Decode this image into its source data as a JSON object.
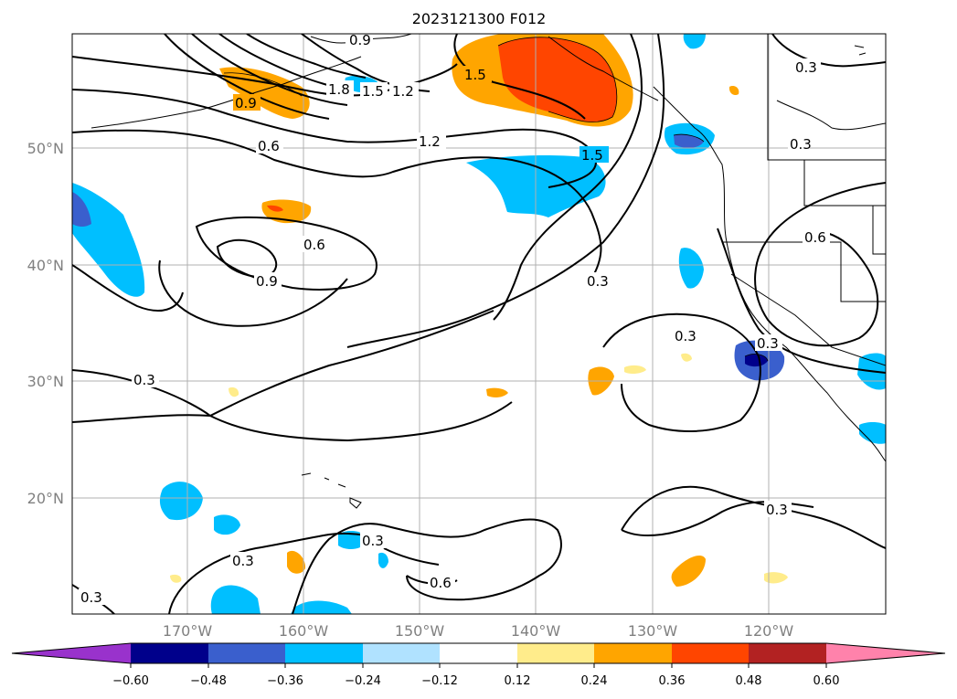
{
  "title": "2023121300 F012",
  "lat_labels": [
    "50°N",
    "40°N",
    "30°N",
    "20°N"
  ],
  "lon_labels": [
    "170°W",
    "160°W",
    "150°W",
    "140°W",
    "130°W",
    "120°W"
  ],
  "colorbar": {
    "ticks": [
      "−0.60",
      "−0.48",
      "−0.36",
      "−0.24",
      "−0.12",
      "0.12",
      "0.24",
      "0.36",
      "0.48",
      "0.60"
    ],
    "colors": [
      "#9932cc",
      "#00008b",
      "#3a5fcd",
      "#00bfff",
      "#b0e2ff",
      "#ffffff",
      "#ffec8b",
      "#ffa500",
      "#ff4500",
      "#b22222",
      "#ff82ab"
    ]
  },
  "contour_labels": [
    "0.9",
    "1.2",
    "1.5",
    "1.8",
    "1.5",
    "1.2",
    "1.5",
    "0.9",
    "0.6",
    "0.6",
    "0.9",
    "0.3",
    "0.3",
    "0.3",
    "0.6",
    "0.3",
    "0.3",
    "0.3",
    "0.3",
    "0.6",
    "0.3",
    "0.3",
    "0.3"
  ]
}
